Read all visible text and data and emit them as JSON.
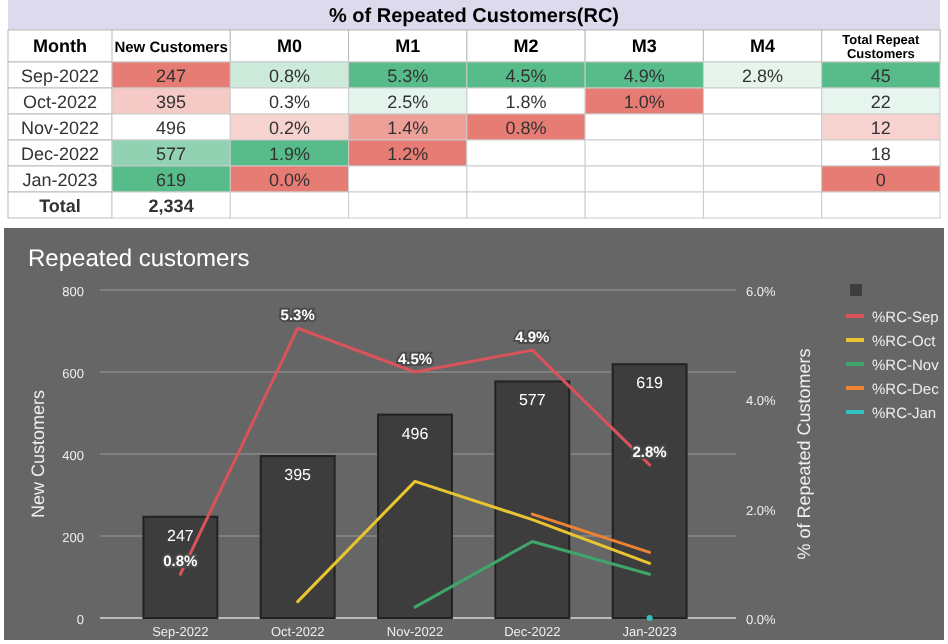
{
  "chart_data": [
    {
      "type": "heatmap",
      "title": "% of Repeated Customers(RC)",
      "ylabel": "Month",
      "categories": [
        "New Customers",
        "M0",
        "M1",
        "M2",
        "M3",
        "M4",
        "Total Repeat Customers"
      ],
      "y_categories": [
        "Sep-2022",
        "Oct-2022",
        "Nov-2022",
        "Dec-2022",
        "Jan-2023",
        "Total"
      ],
      "cells": [
        [
          247,
          0.8,
          5.3,
          4.5,
          4.9,
          2.8,
          45
        ],
        [
          395,
          0.3,
          2.5,
          1.8,
          1.0,
          null,
          22
        ],
        [
          496,
          0.2,
          1.4,
          0.8,
          null,
          null,
          12
        ],
        [
          577,
          1.9,
          1.2,
          null,
          null,
          null,
          18
        ],
        [
          619,
          0.0,
          null,
          null,
          null,
          null,
          0
        ],
        [
          2334,
          null,
          null,
          null,
          null,
          null,
          null
        ]
      ],
      "cell_labels": [
        [
          "247",
          "0.8%",
          "5.3%",
          "4.5%",
          "4.9%",
          "2.8%",
          "45"
        ],
        [
          "395",
          "0.3%",
          "2.5%",
          "1.8%",
          "1.0%",
          null,
          "22"
        ],
        [
          "496",
          "0.2%",
          "1.4%",
          "0.8%",
          null,
          null,
          "12"
        ],
        [
          "577",
          "1.9%",
          "1.2%",
          null,
          null,
          null,
          "18"
        ],
        [
          "619",
          "0.0%",
          null,
          null,
          null,
          null,
          "0"
        ],
        [
          "2,334",
          null,
          null,
          null,
          null,
          null,
          null
        ]
      ]
    },
    {
      "type": "bar",
      "title": "Repeated customers",
      "ylabel": "New Customers",
      "y2label": "% of Repeated Customers",
      "categories": [
        "Sep-2022",
        "Oct-2022",
        "Nov-2022",
        "Dec-2022",
        "Jan-2023"
      ],
      "ylim": [
        0,
        800
      ],
      "yticks": [
        0,
        200,
        400,
        600,
        800
      ],
      "y2lim": [
        0,
        6
      ],
      "y2ticks": [
        {
          "value": 0,
          "label": "0.0%"
        },
        {
          "value": 2,
          "label": "2.0%"
        },
        {
          "value": 4,
          "label": "4.0%"
        },
        {
          "value": 6,
          "label": "6.0%"
        }
      ],
      "grid": "y",
      "legend": "right",
      "series": [
        {
          "type": "bar",
          "color": "#3d3d3d",
          "values": [
            247,
            395,
            496,
            577,
            619
          ],
          "value_labels": [
            "247",
            "395",
            "496",
            "577",
            "619"
          ]
        },
        {
          "type": "line",
          "axis": "y2",
          "name": "%RC-Sep",
          "color": "#d9535a",
          "values": [
            0.8,
            5.3,
            4.5,
            4.9,
            2.8
          ],
          "value_labels": [
            "0.8%",
            "5.3%",
            "4.5%",
            "4.9%",
            "2.8%"
          ]
        },
        {
          "type": "line",
          "axis": "y2",
          "name": "%RC-Oct",
          "color": "#e8c531",
          "values": [
            null,
            0.3,
            2.5,
            1.8,
            1.0
          ]
        },
        {
          "type": "line",
          "axis": "y2",
          "name": "%RC-Nov",
          "color": "#3fa56a",
          "values": [
            null,
            null,
            0.2,
            1.4,
            0.8
          ]
        },
        {
          "type": "line",
          "axis": "y2",
          "name": "%RC-Dec",
          "color": "#ee8433",
          "values": [
            null,
            null,
            null,
            1.9,
            1.2
          ]
        },
        {
          "type": "line",
          "axis": "y2",
          "name": "%RC-Jan",
          "color": "#33c2c2",
          "marker": "circle",
          "values": [
            null,
            null,
            null,
            null,
            0.0
          ]
        }
      ]
    }
  ]
}
